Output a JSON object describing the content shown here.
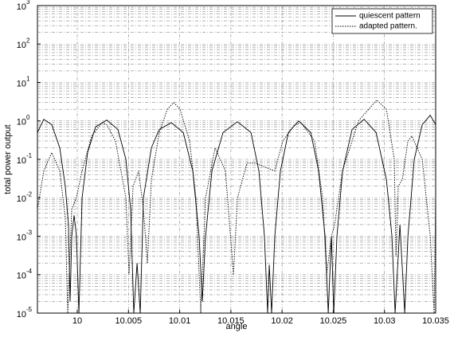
{
  "chart_data": {
    "type": "line",
    "ylabel": "total power output",
    "xlabel": "angle",
    "xlim": [
      9.99611,
      10.035
    ],
    "ylim": [
      1e-05,
      1000
    ],
    "yscale": "log",
    "grid": true,
    "legend": "upper right",
    "xticks": [
      10,
      10.005,
      10.01,
      10.015,
      10.02,
      10.025,
      10.03,
      10.035
    ],
    "yticks": [
      {
        "value": 1e-05,
        "label": "10",
        "exp": "-5"
      },
      {
        "value": 0.0001,
        "label": "10",
        "exp": "-4"
      },
      {
        "value": 0.001,
        "label": "10",
        "exp": "-3"
      },
      {
        "value": 0.01,
        "label": "10",
        "exp": "-2"
      },
      {
        "value": 0.1,
        "label": "10",
        "exp": "-1"
      },
      {
        "value": 1,
        "label": "10",
        "exp": "0"
      },
      {
        "value": 10,
        "label": "10",
        "exp": "1"
      },
      {
        "value": 100,
        "label": "10",
        "exp": "2"
      },
      {
        "value": 1000,
        "label": "10",
        "exp": "3"
      }
    ],
    "series": [
      {
        "name": "quiescent pattern",
        "color": "#000000",
        "linestyle": "solid",
        "x": [
          9.99611,
          9.99673,
          9.99751,
          9.99829,
          9.99883,
          9.99914,
          9.9993,
          9.99946,
          9.99969,
          9.99992,
          10.00016,
          10.00047,
          10.00101,
          10.00179,
          10.00288,
          10.00397,
          10.00475,
          10.00521,
          10.00552,
          10.00584,
          10.00615,
          10.00646,
          10.00724,
          10.00801,
          10.00918,
          10.01035,
          10.01128,
          10.0119,
          10.01221,
          10.01253,
          10.01315,
          10.01424,
          10.01564,
          10.01696,
          10.01774,
          10.01828,
          10.01859,
          10.01875,
          10.01898,
          10.01929,
          10.01984,
          10.02062,
          10.02163,
          10.0228,
          10.02357,
          10.0242,
          10.02451,
          10.02482,
          10.02505,
          10.02536,
          10.02591,
          10.02684,
          10.02801,
          10.02918,
          10.03019,
          10.03073,
          10.03104,
          10.03151,
          10.03198,
          10.03229,
          10.03291,
          10.03369,
          10.03447,
          10.035
        ],
        "values": [
          0.5,
          1.1,
          0.8,
          0.2,
          0.02,
          0.002,
          2e-05,
          0.001,
          0.0035,
          0.001,
          1e-05,
          0.01,
          0.15,
          0.7,
          1.05,
          0.6,
          0.1,
          0.005,
          1e-05,
          0.0002,
          1e-05,
          0.01,
          0.2,
          0.6,
          0.9,
          0.5,
          0.05,
          0.001,
          2e-05,
          0.001,
          0.05,
          0.5,
          0.95,
          0.5,
          0.05,
          0.001,
          1e-05,
          0.00018,
          1e-05,
          0.001,
          0.05,
          0.5,
          1.0,
          0.5,
          0.05,
          0.001,
          1e-05,
          0.001,
          1e-05,
          0.001,
          0.05,
          0.6,
          1.1,
          0.5,
          0.03,
          0.001,
          1e-05,
          0.002,
          1e-05,
          0.001,
          0.1,
          0.8,
          1.4,
          0.8
        ]
      },
      {
        "name": "adapted pattern.",
        "color": "#000000",
        "linestyle": "dotted",
        "x": [
          9.99611,
          9.99673,
          9.99751,
          9.99829,
          9.99883,
          9.99907,
          9.99946,
          9.99992,
          10.00047,
          10.0014,
          10.00241,
          10.00288,
          10.00373,
          10.00475,
          10.00506,
          10.00545,
          10.00599,
          10.00646,
          10.00685,
          10.00724,
          10.00801,
          10.00879,
          10.00941,
          10.01004,
          10.01097,
          10.01159,
          10.01206,
          10.01253,
          10.01346,
          10.01447,
          10.01525,
          10.01565,
          10.01657,
          10.01735,
          10.01929,
          10.02007,
          10.02124,
          10.02186,
          10.02318,
          10.02396,
          10.02435,
          10.02482,
          10.02513,
          10.02591,
          10.02746,
          10.02925,
          10.03019,
          10.03096,
          10.03112,
          10.03135,
          10.03174,
          10.03229,
          10.03268,
          10.03369,
          10.03447,
          10.03485,
          10.035
        ],
        "values": [
          0.005,
          0.05,
          0.15,
          0.05,
          0.003,
          1e-05,
          0.005,
          0.01,
          0.05,
          0.4,
          0.9,
          0.8,
          0.3,
          0.01,
          0.0001,
          0.02,
          0.05,
          0.005,
          0.0002,
          0.03,
          0.5,
          2,
          3,
          2,
          0.3,
          0.01,
          1e-05,
          0.01,
          0.2,
          0.05,
          0.0001,
          0.01,
          0.08,
          0.08,
          0.05,
          0.3,
          0.8,
          0.9,
          0.3,
          0.01,
          0.0001,
          0.001,
          0.002,
          0.05,
          1,
          3.5,
          2,
          0.1,
          0.0003,
          0.02,
          0.03,
          0.3,
          0.4,
          0.1,
          0.001,
          1e-05,
          0.01
        ]
      }
    ]
  }
}
